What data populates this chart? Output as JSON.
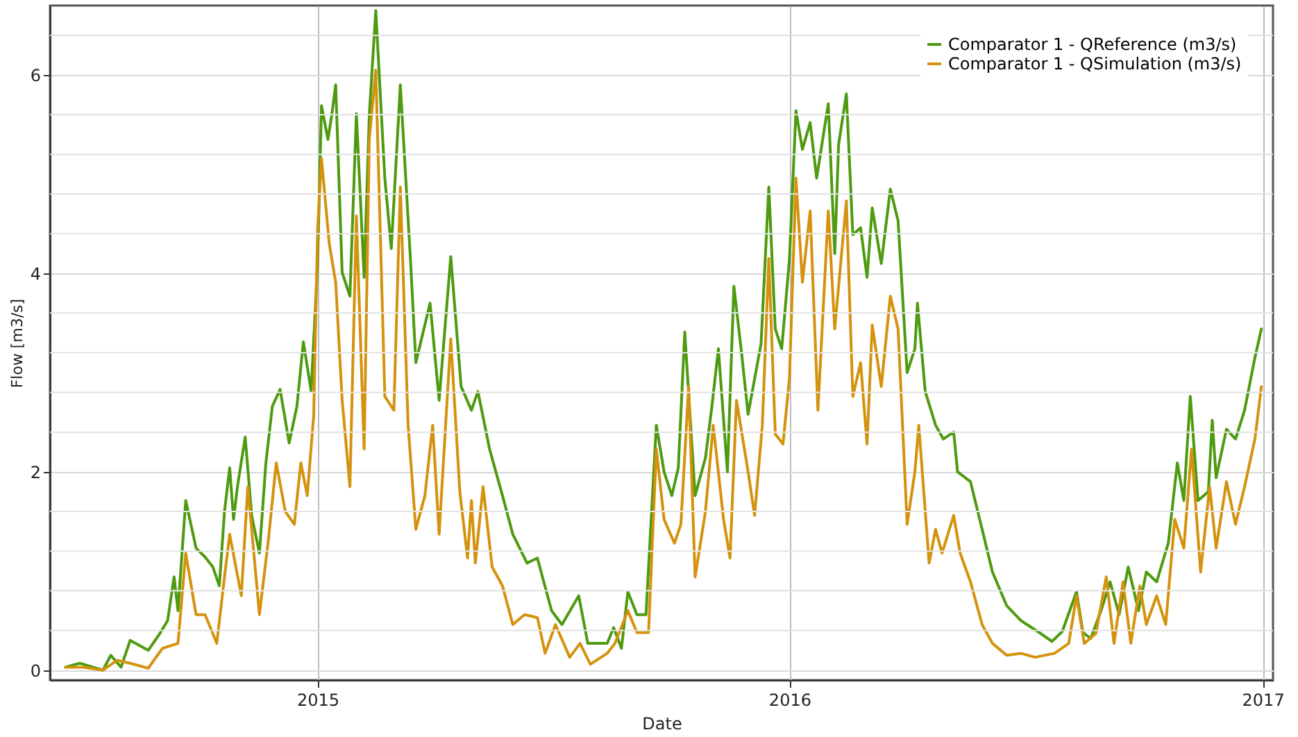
{
  "chart_data": {
    "type": "line",
    "xlabel": "Date",
    "ylabel": "Flow [m3/s]",
    "xlim": [
      "2014-06-08",
      "2017-01-09"
    ],
    "xticks": [
      "2015",
      "2016",
      "2017"
    ],
    "ylim": [
      -0.1,
      6.7
    ],
    "yticks": [
      0,
      {
        "value": 0.4,
        "label": null
      },
      {
        "value": 0.8,
        "label": null
      },
      {
        "value": 1.2,
        "label": null
      },
      {
        "value": 1.6,
        "label": null
      },
      2,
      {
        "value": 2.4,
        "label": null
      },
      {
        "value": 2.8,
        "label": null
      },
      {
        "value": 3.2,
        "label": null
      },
      {
        "value": 3.6,
        "label": null
      },
      4,
      {
        "value": 4.4,
        "label": null
      },
      {
        "value": 4.8,
        "label": null
      },
      {
        "value": 5.2,
        "label": null
      },
      {
        "value": 5.6,
        "label": null
      },
      6,
      {
        "value": 6.4,
        "label": null
      }
    ],
    "grid": true,
    "legend": "top right",
    "marker": "none",
    "line_style": "solid",
    "series": [
      {
        "name": "Comparator 1 - QReference (m3/s)",
        "color": "#4e9a10",
        "x": [
          "2014-06-20",
          "2014-07-01",
          "2014-07-19",
          "2014-07-25",
          "2014-08-02",
          "2014-08-09",
          "2014-08-23",
          "2014-09-01",
          "2014-09-07",
          "2014-09-12",
          "2014-09-15",
          "2014-09-21",
          "2014-09-29",
          "2014-10-06",
          "2014-10-12",
          "2014-10-17",
          "2014-10-21",
          "2014-10-25",
          "2014-10-28",
          "2014-10-31",
          "2014-11-06",
          "2014-11-11",
          "2014-11-17",
          "2014-11-22",
          "2014-11-27",
          "2014-12-03",
          "2014-12-10",
          "2014-12-16",
          "2014-12-21",
          "2014-12-27",
          "2015-01-01",
          "2015-01-04",
          "2015-01-09",
          "2015-01-12",
          "2015-01-15",
          "2015-01-20",
          "2015-01-26",
          "2015-01-31",
          "2015-02-06",
          "2015-02-10",
          "2015-02-15",
          "2015-02-22",
          "2015-02-27",
          "2015-03-06",
          "2015-03-14",
          "2015-03-18",
          "2015-03-29",
          "2015-04-05",
          "2015-04-14",
          "2015-04-22",
          "2015-04-30",
          "2015-05-05",
          "2015-05-14",
          "2015-05-24",
          "2015-06-01",
          "2015-06-12",
          "2015-06-20",
          "2015-07-01",
          "2015-07-09",
          "2015-07-22",
          "2015-07-29",
          "2015-08-13",
          "2015-08-18",
          "2015-08-24",
          "2015-08-29",
          "2015-09-05",
          "2015-09-12",
          "2015-09-20",
          "2015-09-26",
          "2015-10-02",
          "2015-10-07",
          "2015-10-12",
          "2015-10-20",
          "2015-10-28",
          "2015-11-02",
          "2015-11-07",
          "2015-11-14",
          "2015-11-19",
          "2015-11-25",
          "2015-11-30",
          "2015-12-10",
          "2015-12-16",
          "2015-12-21",
          "2015-12-26",
          "2016-01-01",
          "2016-01-06",
          "2016-01-11",
          "2016-01-17",
          "2016-01-22",
          "2016-01-31",
          "2016-02-05",
          "2016-02-08",
          "2016-02-14",
          "2016-02-19",
          "2016-02-25",
          "2016-03-01",
          "2016-03-05",
          "2016-03-12",
          "2016-03-19",
          "2016-03-25",
          "2016-04-01",
          "2016-04-07",
          "2016-04-09",
          "2016-04-15",
          "2016-04-23",
          "2016-04-29",
          "2016-05-07",
          "2016-05-10",
          "2016-05-20",
          "2016-05-29",
          "2016-06-06",
          "2016-06-17",
          "2016-06-28",
          "2016-07-11",
          "2016-07-22",
          "2016-07-30",
          "2016-08-10",
          "2016-08-15",
          "2016-08-21",
          "2016-08-29",
          "2016-09-05",
          "2016-09-12",
          "2016-09-19",
          "2016-09-27",
          "2016-10-03",
          "2016-10-11",
          "2016-10-20",
          "2016-10-27",
          "2016-11-01",
          "2016-11-06",
          "2016-11-12",
          "2016-11-20",
          "2016-11-23",
          "2016-11-26",
          "2016-12-04",
          "2016-12-11",
          "2016-12-18",
          "2016-12-26",
          "2016-12-31"
        ],
        "values": [
          0.03,
          0.07,
          0.0,
          0.15,
          0.03,
          0.3,
          0.2,
          0.37,
          0.5,
          0.94,
          0.6,
          1.71,
          1.23,
          1.14,
          1.04,
          0.85,
          1.6,
          2.04,
          1.52,
          1.85,
          2.35,
          1.56,
          1.18,
          2.09,
          2.66,
          2.83,
          2.29,
          2.66,
          3.31,
          2.81,
          4.1,
          5.69,
          5.35,
          5.6,
          5.9,
          4.01,
          3.77,
          5.61,
          3.96,
          5.6,
          6.65,
          4.96,
          4.25,
          5.9,
          4.1,
          3.1,
          3.7,
          2.72,
          4.17,
          2.86,
          2.62,
          2.81,
          2.23,
          1.76,
          1.37,
          1.08,
          1.13,
          0.6,
          0.46,
          0.75,
          0.27,
          0.27,
          0.43,
          0.22,
          0.79,
          0.56,
          0.56,
          2.47,
          2.0,
          1.76,
          2.04,
          3.41,
          1.76,
          2.14,
          2.66,
          3.24,
          2.0,
          3.87,
          3.19,
          2.58,
          3.29,
          4.87,
          3.44,
          3.24,
          4.15,
          5.64,
          5.25,
          5.52,
          4.96,
          5.71,
          4.2,
          5.3,
          5.81,
          4.39,
          4.46,
          3.96,
          4.66,
          4.1,
          4.85,
          4.53,
          3.0,
          3.24,
          3.7,
          2.81,
          2.47,
          2.33,
          2.4,
          2.0,
          1.9,
          1.42,
          0.99,
          0.65,
          0.5,
          0.39,
          0.29,
          0.39,
          0.79,
          0.38,
          0.32,
          0.6,
          0.89,
          0.56,
          1.04,
          0.6,
          0.99,
          0.89,
          1.28,
          2.09,
          1.71,
          2.76,
          1.71,
          1.8,
          2.52,
          1.94,
          2.43,
          2.33,
          2.62,
          3.15,
          3.44
        ]
      },
      {
        "name": "Comparator 1 - QSimulation (m3/s)",
        "color": "#d4920e",
        "x": [
          "2014-06-20",
          "2014-07-04",
          "2014-07-19",
          "2014-07-30",
          "2014-08-09",
          "2014-08-23",
          "2014-09-03",
          "2014-09-15",
          "2014-09-21",
          "2014-09-29",
          "2014-10-06",
          "2014-10-15",
          "2014-10-21",
          "2014-10-25",
          "2014-11-03",
          "2014-11-08",
          "2014-11-17",
          "2014-11-24",
          "2014-11-30",
          "2014-12-07",
          "2014-12-14",
          "2014-12-19",
          "2014-12-24",
          "2014-12-29",
          "2015-01-01",
          "2015-01-04",
          "2015-01-10",
          "2015-01-15",
          "2015-01-20",
          "2015-01-26",
          "2015-01-31",
          "2015-02-06",
          "2015-02-10",
          "2015-02-15",
          "2015-02-22",
          "2015-03-01",
          "2015-03-06",
          "2015-03-12",
          "2015-03-18",
          "2015-03-25",
          "2015-03-31",
          "2015-04-05",
          "2015-04-14",
          "2015-04-21",
          "2015-04-27",
          "2015-04-30",
          "2015-05-03",
          "2015-05-09",
          "2015-05-16",
          "2015-05-24",
          "2015-06-01",
          "2015-06-10",
          "2015-06-20",
          "2015-06-26",
          "2015-07-04",
          "2015-07-15",
          "2015-07-23",
          "2015-07-31",
          "2015-08-13",
          "2015-08-19",
          "2015-08-29",
          "2015-09-05",
          "2015-09-14",
          "2015-09-20",
          "2015-09-26",
          "2015-10-04",
          "2015-10-09",
          "2015-10-15",
          "2015-10-20",
          "2015-10-28",
          "2015-11-03",
          "2015-11-11",
          "2015-11-16",
          "2015-11-21",
          "2015-11-30",
          "2015-12-05",
          "2015-12-11",
          "2015-12-16",
          "2015-12-21",
          "2015-12-27",
          "2016-01-01",
          "2016-01-06",
          "2016-01-11",
          "2016-01-17",
          "2016-01-23",
          "2016-01-31",
          "2016-02-05",
          "2016-02-11",
          "2016-02-14",
          "2016-02-19",
          "2016-02-25",
          "2016-03-01",
          "2016-03-05",
          "2016-03-12",
          "2016-03-19",
          "2016-03-25",
          "2016-04-01",
          "2016-04-07",
          "2016-04-10",
          "2016-04-18",
          "2016-04-23",
          "2016-04-28",
          "2016-05-07",
          "2016-05-12",
          "2016-05-20",
          "2016-05-29",
          "2016-06-06",
          "2016-06-17",
          "2016-06-28",
          "2016-07-09",
          "2016-07-24",
          "2016-08-04",
          "2016-08-10",
          "2016-08-16",
          "2016-08-25",
          "2016-09-02",
          "2016-09-08",
          "2016-09-15",
          "2016-09-21",
          "2016-09-28",
          "2016-10-03",
          "2016-10-11",
          "2016-10-18",
          "2016-10-25",
          "2016-11-01",
          "2016-11-07",
          "2016-11-14",
          "2016-11-21",
          "2016-11-26",
          "2016-12-04",
          "2016-12-11",
          "2016-12-18",
          "2016-12-26",
          "2016-12-31"
        ],
        "values": [
          0.03,
          0.03,
          0.0,
          0.1,
          0.07,
          0.02,
          0.22,
          0.27,
          1.18,
          0.56,
          0.56,
          0.27,
          0.94,
          1.37,
          0.75,
          1.85,
          0.56,
          1.32,
          2.09,
          1.6,
          1.47,
          2.09,
          1.76,
          2.57,
          4.44,
          5.16,
          4.3,
          3.91,
          2.72,
          1.85,
          4.58,
          2.23,
          5.35,
          6.05,
          2.76,
          2.62,
          4.87,
          2.47,
          1.42,
          1.76,
          2.47,
          1.37,
          3.34,
          1.8,
          1.13,
          1.71,
          1.08,
          1.85,
          1.04,
          0.85,
          0.46,
          0.56,
          0.53,
          0.17,
          0.46,
          0.13,
          0.27,
          0.06,
          0.17,
          0.27,
          0.6,
          0.38,
          0.38,
          2.23,
          1.52,
          1.28,
          1.47,
          2.86,
          0.94,
          1.6,
          2.47,
          1.52,
          1.13,
          2.72,
          2.0,
          1.56,
          2.47,
          4.15,
          2.38,
          2.28,
          2.95,
          4.96,
          3.91,
          4.63,
          2.62,
          4.63,
          3.44,
          4.3,
          4.73,
          2.76,
          3.1,
          2.28,
          3.48,
          2.86,
          3.77,
          3.44,
          1.47,
          2.0,
          2.47,
          1.08,
          1.42,
          1.18,
          1.56,
          1.18,
          0.89,
          0.46,
          0.27,
          0.15,
          0.17,
          0.13,
          0.17,
          0.27,
          0.75,
          0.27,
          0.37,
          0.94,
          0.27,
          0.89,
          0.27,
          0.85,
          0.46,
          0.75,
          0.46,
          1.52,
          1.23,
          2.23,
          0.99,
          1.85,
          1.23,
          1.9,
          1.47,
          1.85,
          2.33,
          2.86
        ]
      }
    ]
  }
}
